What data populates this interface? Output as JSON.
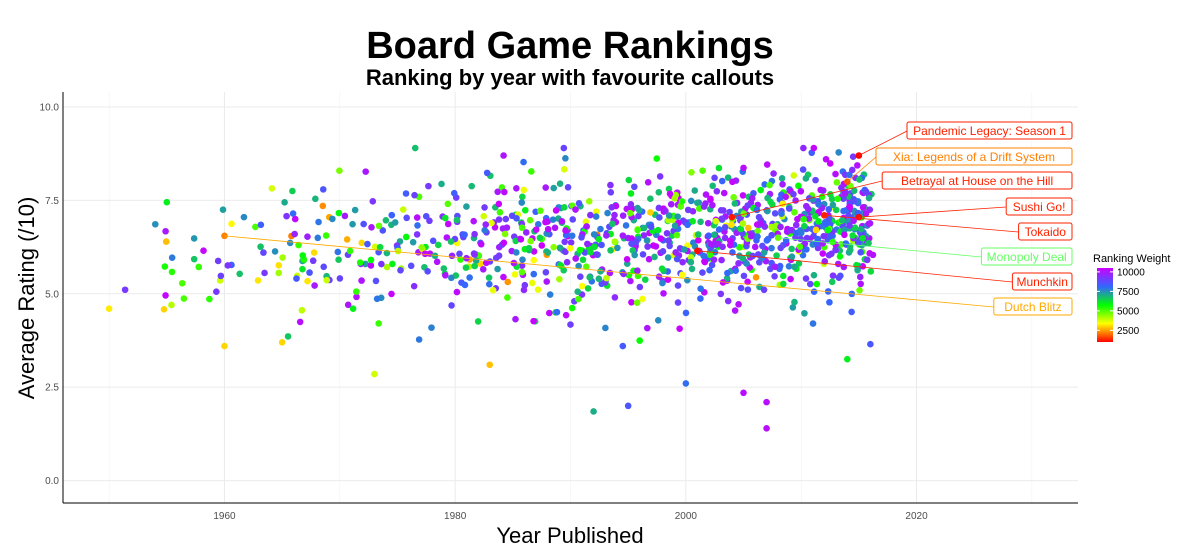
{
  "chart_data": {
    "type": "scatter",
    "title": "Board Game Rankings",
    "subtitle": "Ranking by year with favourite callouts",
    "xlabel": "Year Published",
    "ylabel": "Average Rating (/10)",
    "xlim": [
      1946,
      2034
    ],
    "ylim": [
      -0.6,
      10.4
    ],
    "x_ticks": [
      1960,
      1980,
      2000,
      2020
    ],
    "y_ticks": [
      0.0,
      2.5,
      5.0,
      7.5,
      10.0
    ],
    "y_tick_labels": [
      "0.0",
      "2.5",
      "5.0",
      "7.5",
      "10.0"
    ],
    "grid": true,
    "legend": {
      "title": "Ranking Weight",
      "placement": "right",
      "min": 1000,
      "max": 10500,
      "ticks": [
        2500,
        5000,
        7500,
        10000
      ],
      "colors": [
        "#ff0000",
        "#ffff00",
        "#00ff00",
        "#3366ff",
        "#cc00ff"
      ]
    },
    "point_summary": {
      "approx_count": 1100,
      "year_range": [
        1950,
        2016
      ],
      "density_note": "sparse before 1970, dense after 2000",
      "mean_rating_trend": [
        [
          1950,
          5.8
        ],
        [
          1970,
          6.2
        ],
        [
          1990,
          6.4
        ],
        [
          2010,
          6.7
        ],
        [
          2016,
          7.0
        ]
      ],
      "spread_sd": 0.85
    },
    "outliers": [
      {
        "x": 1955,
        "y": 7.45,
        "weight": 6000
      },
      {
        "x": 1973,
        "y": 2.85,
        "weight": 3800
      },
      {
        "x": 1983,
        "y": 3.1,
        "weight": 2800
      },
      {
        "x": 1992,
        "y": 1.85,
        "weight": 7000
      },
      {
        "x": 1995,
        "y": 2.0,
        "weight": 8500
      },
      {
        "x": 2000,
        "y": 2.6,
        "weight": 8000
      },
      {
        "x": 2005,
        "y": 2.35,
        "weight": 10200
      },
      {
        "x": 2007,
        "y": 2.1,
        "weight": 10200
      },
      {
        "x": 2007,
        "y": 1.4,
        "weight": 10200
      },
      {
        "x": 2014,
        "y": 3.25,
        "weight": 6000
      },
      {
        "x": 2016,
        "y": 3.65,
        "weight": 8500
      },
      {
        "x": 1950,
        "y": 4.6,
        "weight": 3200
      },
      {
        "x": 1960,
        "y": 3.6,
        "weight": 3000
      },
      {
        "x": 1965,
        "y": 3.7,
        "weight": 3000
      }
    ],
    "callouts": [
      {
        "label": "Pandemic Legacy: Season 1",
        "x": 2015,
        "y": 8.7,
        "weight": 1000,
        "color": "#ff2200"
      },
      {
        "label": "Xia: Legends of a Drift System",
        "x": 2014,
        "y": 8.0,
        "weight": 1800,
        "color": "#ff8000"
      },
      {
        "label": "Betrayal at House on the Hill",
        "x": 2004,
        "y": 7.05,
        "weight": 1200,
        "color": "#ff2200"
      },
      {
        "label": "Sushi Go!",
        "x": 2015,
        "y": 7.05,
        "weight": 1100,
        "color": "#ff2200"
      },
      {
        "label": "Tokaido",
        "x": 2012,
        "y": 7.1,
        "weight": 1300,
        "color": "#ff2200"
      },
      {
        "label": "Monopoly Deal",
        "x": 2008,
        "y": 6.5,
        "weight": 4800,
        "color": "#66ff66"
      },
      {
        "label": "Munchkin",
        "x": 2001,
        "y": 6.15,
        "weight": 1100,
        "color": "#ff2200"
      },
      {
        "label": "Dutch Blitz",
        "x": 1960,
        "y": 6.55,
        "weight": 2200,
        "color": "#ffaa00"
      }
    ]
  }
}
